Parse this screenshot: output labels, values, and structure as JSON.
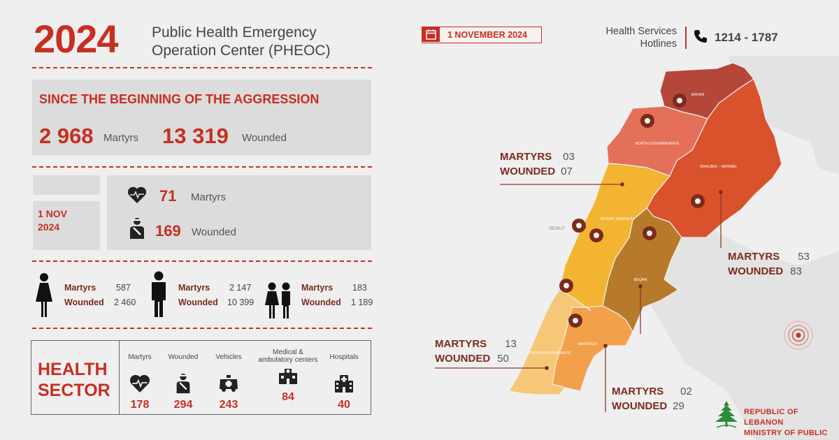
{
  "header": {
    "year": "2024",
    "title_line1": "Public Health Emergency",
    "title_line2": "Operation Center (PHEOC)",
    "date": "1 NOVEMBER 2024",
    "hotline_label_1": "Health Services",
    "hotline_label_2": "Hotlines",
    "hotline_numbers": "1214 - 1787"
  },
  "totals": {
    "heading": "SINCE THE BEGINNING OF THE AGGRESSION",
    "martyrs_value": "2 968",
    "martyrs_label": "Martyrs",
    "wounded_value": "13 319",
    "wounded_label": "Wounded"
  },
  "daily": {
    "date_line1": "1 NOV",
    "date_line2": "2024",
    "martyrs_value": "71",
    "martyrs_label": "Martyrs",
    "wounded_value": "169",
    "wounded_label": "Wounded"
  },
  "demographics": [
    {
      "group": "women",
      "martyrs_label": "Martyrs",
      "martyrs": "587",
      "wounded_label": "Wounded",
      "wounded": "2 460"
    },
    {
      "group": "men",
      "martyrs_label": "Martyrs",
      "martyrs": "2 147",
      "wounded_label": "Wounded",
      "wounded": "10 399"
    },
    {
      "group": "children",
      "martyrs_label": "Martyrs",
      "martyrs": "183",
      "wounded_label": "Wounded",
      "wounded": "1 189"
    }
  ],
  "health_sector": {
    "title_line1": "HEALTH",
    "title_line2": "SECTOR",
    "items": [
      {
        "label": "Martyrs",
        "value": "178",
        "icon": "heart-pulse-icon"
      },
      {
        "label": "Wounded",
        "value": "294",
        "icon": "wounded-person-icon"
      },
      {
        "label": "Vehicles",
        "value": "243",
        "icon": "ambulance-icon"
      },
      {
        "label": "Medical & ambulatory centers",
        "value": "84",
        "icon": "medical-center-icon"
      },
      {
        "label": "Hospitals",
        "value": "40",
        "icon": "hospital-icon"
      }
    ]
  },
  "map": {
    "regions": {
      "akkar": "AKKAR",
      "north": "NORTH GOVERNORATE",
      "baalbek": "BAALBEK - HERMEL",
      "beirut": "BEIRUT",
      "mount_lebanon": "MOUNT LEBANON",
      "beqaa": "BEQAA",
      "nabatieh": "NABATIEH",
      "south": "SOUTH GOVERNORATE"
    },
    "region_colors": {
      "akkar": "#b5473a",
      "north": "#e5705a",
      "baalbek": "#d9522c",
      "mount_lebanon": "#f3b531",
      "beqaa": "#b77a2b",
      "nabatieh": "#f3a04a",
      "south": "#f6c777"
    },
    "callouts": [
      {
        "region": "mount_lebanon",
        "martyrs_label": "MARTYRS",
        "martyrs": "03",
        "wounded_label": "WOUNDED",
        "wounded": "07"
      },
      {
        "region": "baalbek",
        "martyrs_label": "MARTYRS",
        "martyrs": "53",
        "wounded_label": "WOUNDED",
        "wounded": "83"
      },
      {
        "region": "south",
        "martyrs_label": "MARTYRS",
        "martyrs": "13",
        "wounded_label": "WOUNDED",
        "wounded": "50"
      },
      {
        "region": "nabatieh",
        "martyrs_label": "MARTYRS",
        "martyrs": "02",
        "wounded_label": "WOUNDED",
        "wounded": "29"
      }
    ]
  },
  "footer": {
    "line1": "REPUBLIC OF LEBANON",
    "line2": "MINISTRY OF PUBLIC HEALTH"
  },
  "colors": {
    "accent": "#c62f22",
    "dark_label": "#7b2a1c",
    "panel": "#dcdcdc",
    "background": "#efefef"
  }
}
